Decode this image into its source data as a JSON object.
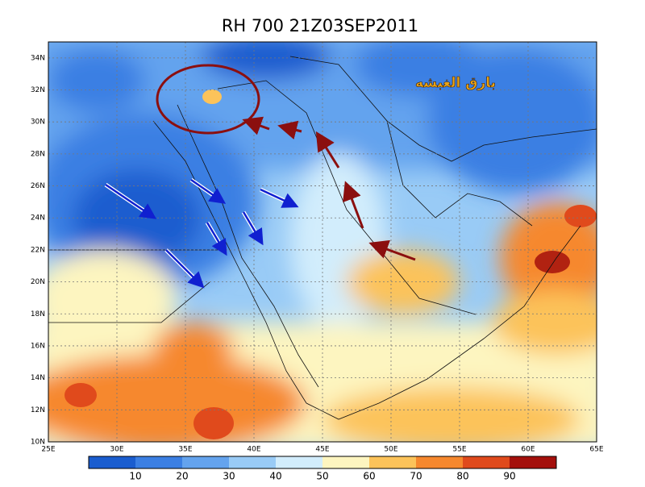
{
  "title": "RH 700  21Z03SEP2011",
  "lon_labels": [
    "25E",
    "30E",
    "35E",
    "40E",
    "45E",
    "50E",
    "55E",
    "60E",
    "65E"
  ],
  "lat_labels": [
    "10N",
    "12N",
    "14N",
    "16N",
    "18N",
    "20N",
    "22N",
    "24N",
    "26N",
    "28N",
    "30N",
    "32N",
    "34N"
  ],
  "colorbar": {
    "labels": [
      10,
      20,
      30,
      40,
      50,
      60,
      70,
      80,
      90
    ],
    "colors": [
      "#1a5dcf",
      "#3b7fe3",
      "#64a3ee",
      "#99cbf6",
      "#d2edfc",
      "#fdf5c0",
      "#fcc35a",
      "#f6882e",
      "#e04a1c",
      "#a4100c"
    ]
  },
  "watermark": "بارق الغبشه"
}
